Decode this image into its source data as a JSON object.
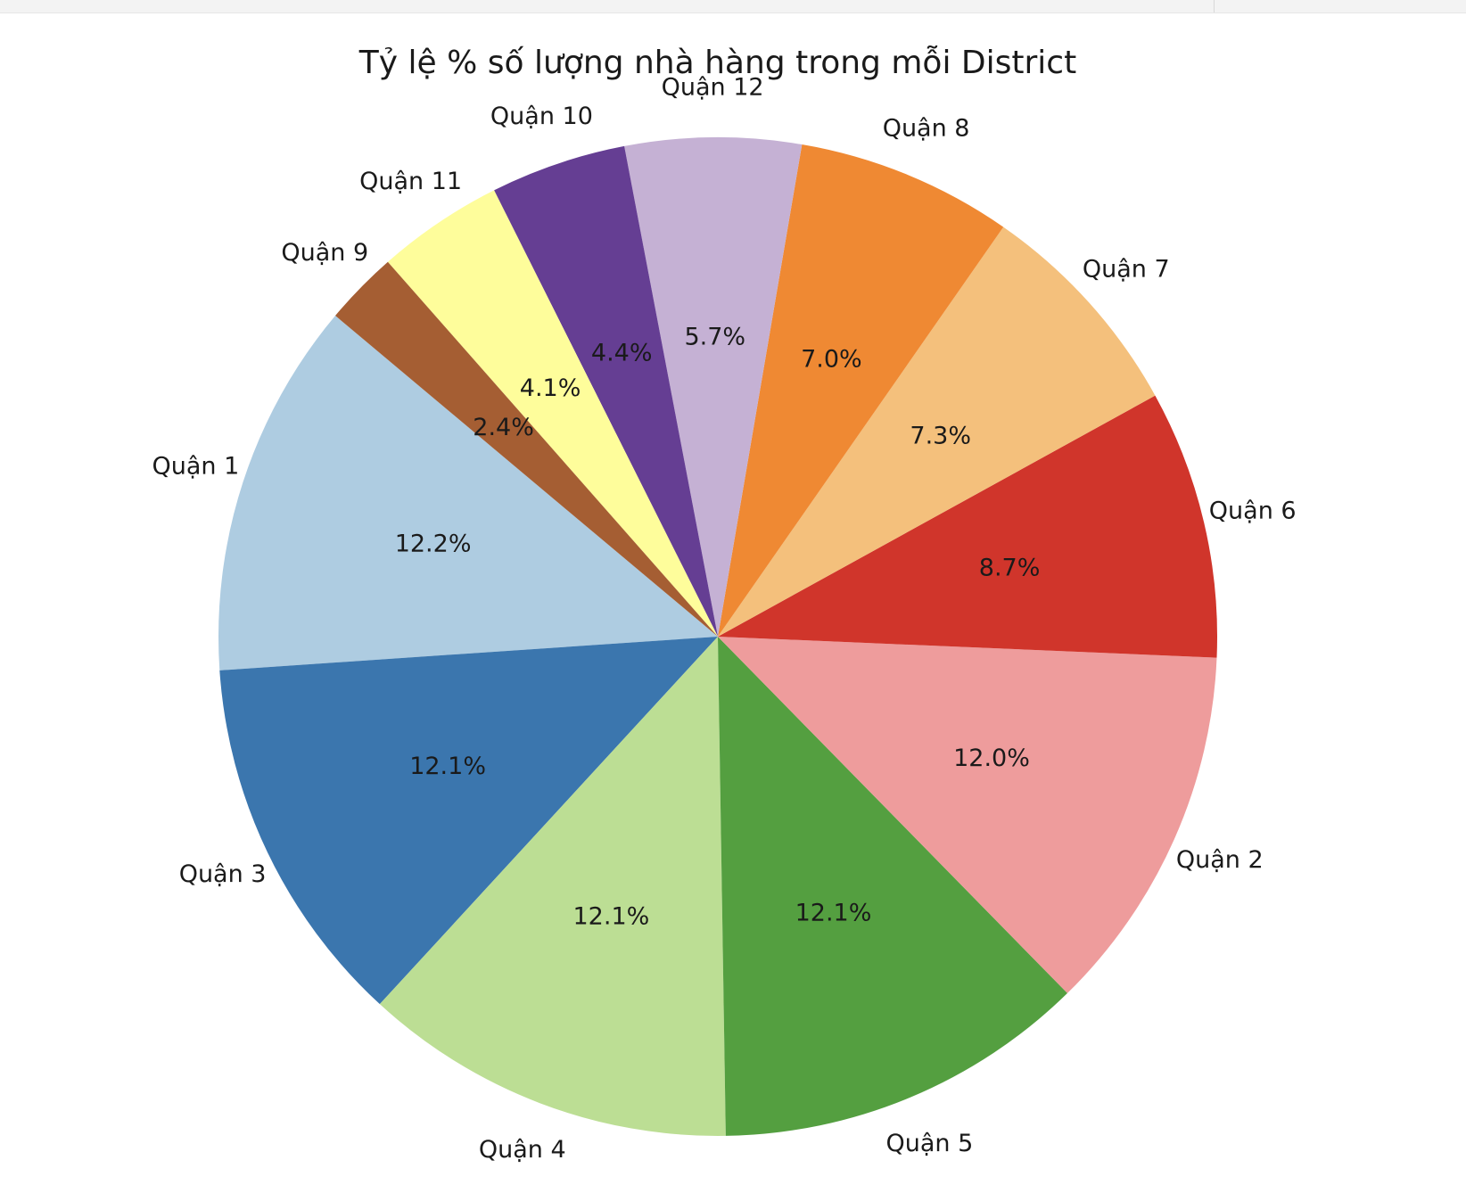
{
  "chart_data": {
    "type": "pie",
    "title": "Tỷ lệ % số lượng nhà hàng trong mỗi District",
    "start_angle_deg": 140,
    "direction": "counterclockwise",
    "slices": [
      {
        "label": "Quận 1",
        "pct_label": "12.2%",
        "value": 12.2,
        "color": "#aecce1"
      },
      {
        "label": "Quận 3",
        "pct_label": "12.1%",
        "value": 12.1,
        "color": "#3b76ae"
      },
      {
        "label": "Quận 4",
        "pct_label": "12.1%",
        "value": 12.1,
        "color": "#bcde94"
      },
      {
        "label": "Quận 5",
        "pct_label": "12.1%",
        "value": 12.1,
        "color": "#549f40"
      },
      {
        "label": "Quận 2",
        "pct_label": "12.0%",
        "value": 12.0,
        "color": "#ee9c9c"
      },
      {
        "label": "Quận 6",
        "pct_label": "8.7%",
        "value": 8.7,
        "color": "#d0352b"
      },
      {
        "label": "Quận 7",
        "pct_label": "7.3%",
        "value": 7.3,
        "color": "#f4c07c"
      },
      {
        "label": "Quận 8",
        "pct_label": "7.0%",
        "value": 7.0,
        "color": "#ef8933"
      },
      {
        "label": "Quận 12",
        "pct_label": "5.7%",
        "value": 5.7,
        "color": "#c5b1d4"
      },
      {
        "label": "Quận 10",
        "pct_label": "4.4%",
        "value": 4.4,
        "color": "#653e93"
      },
      {
        "label": "Quận 11",
        "pct_label": "4.1%",
        "value": 4.1,
        "color": "#fefd9b"
      },
      {
        "label": "Quận 9",
        "pct_label": "2.4%",
        "value": 2.4,
        "color": "#a55e33"
      }
    ]
  }
}
